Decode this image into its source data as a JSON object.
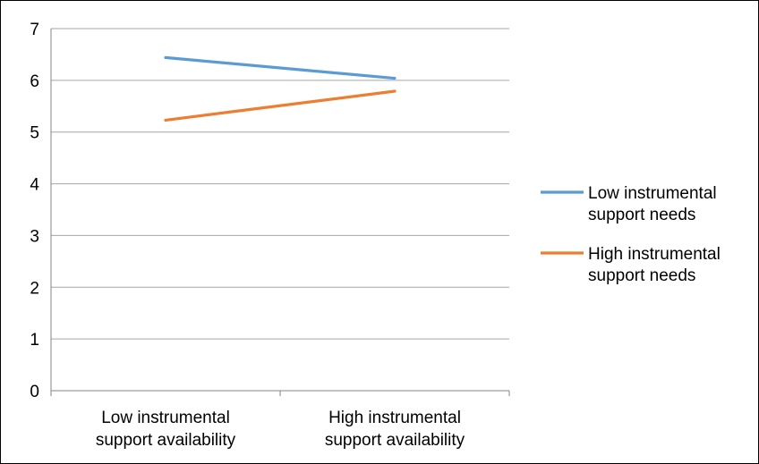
{
  "chart_data": {
    "type": "line",
    "categories": [
      [
        "Low  instrumental",
        "support availability"
      ],
      [
        "High instrumental",
        "support availability"
      ]
    ],
    "series": [
      {
        "name": [
          "Low instrumental",
          "support needs"
        ],
        "color": "#5b9bd5",
        "values": [
          6.44,
          6.04
        ]
      },
      {
        "name": [
          "High instrumental",
          "support needs"
        ],
        "color": "#ed7d31",
        "values": [
          5.23,
          5.79
        ]
      }
    ],
    "ylim": [
      0,
      7
    ],
    "yticks": [
      0,
      1,
      2,
      3,
      4,
      5,
      6,
      7
    ],
    "grid": true,
    "legend": "right"
  }
}
